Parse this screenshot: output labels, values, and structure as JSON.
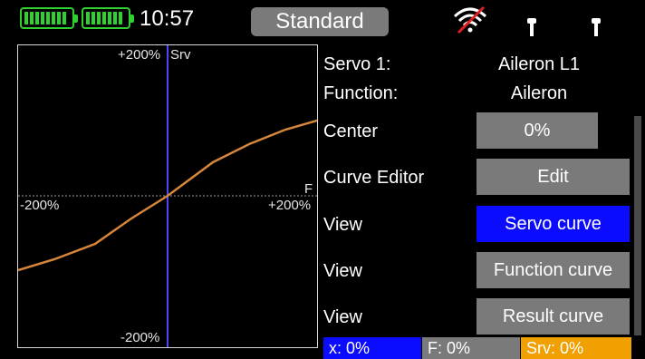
{
  "status": {
    "time": "10:57",
    "mode": "Standard",
    "battery_color": "#2fd12f"
  },
  "graph": {
    "top_label": "+200%",
    "top_unit": "Srv",
    "bottom_label": "-200%",
    "left_label": "-200%",
    "right_label": "+200%",
    "right_unit": "F",
    "curve_color": "#d8863a",
    "axis_color": "#4848ff"
  },
  "rows": {
    "servo_label": "Servo 1:",
    "servo_value": "Aileron L1",
    "function_label": "Function:",
    "function_value": "Aileron",
    "center_label": "Center",
    "center_value": "0%",
    "curve_editor_label": "Curve Editor",
    "edit_button": "Edit",
    "view1_label": "View",
    "view1_button": "Servo curve",
    "view2_label": "View",
    "view2_button": "Function curve",
    "view3_label": "View",
    "view3_button": "Result curve"
  },
  "readouts": {
    "x": "x: 0%",
    "f": "F: 0%",
    "srv": "Srv: 0%",
    "x_color": "#0b0bff",
    "f_color": "#7a7a7a",
    "srv_color": "#f0a000"
  }
}
